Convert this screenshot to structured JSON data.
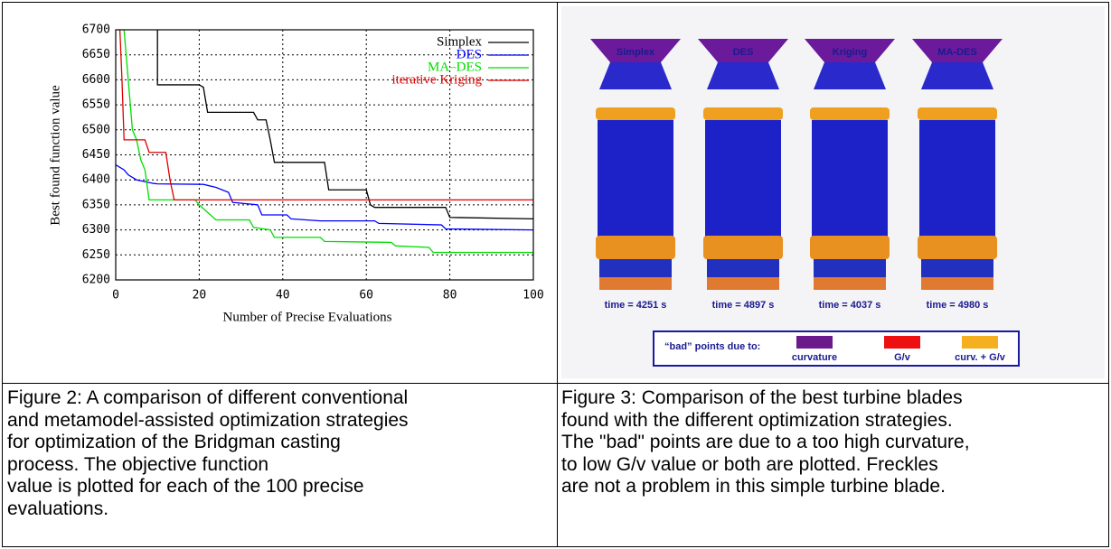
{
  "chart_data": {
    "type": "line",
    "x_label": "Number of Precise Evaluations",
    "y_label": "Best found function value",
    "xlim": [
      0,
      100
    ],
    "ylim": [
      6200,
      6700
    ],
    "xticks": [
      0,
      20,
      40,
      60,
      80,
      100
    ],
    "yticks": [
      6200,
      6250,
      6300,
      6350,
      6400,
      6450,
      6500,
      6550,
      6600,
      6650,
      6700
    ],
    "grid": true,
    "legend": "upper right",
    "series": [
      {
        "name": "Simplex",
        "color": "#000000",
        "x": [
          10,
          10,
          20,
          21,
          22,
          33,
          34,
          36,
          37,
          38,
          50,
          51,
          60,
          61,
          62,
          79,
          80,
          100
        ],
        "values": [
          6700,
          6590,
          6590,
          6585,
          6535,
          6535,
          6520,
          6520,
          6480,
          6435,
          6435,
          6380,
          6380,
          6350,
          6345,
          6345,
          6325,
          6322
        ]
      },
      {
        "name": "DES",
        "color": "#0000ff",
        "x": [
          0,
          2,
          3,
          5,
          9,
          10,
          21,
          24,
          27,
          28,
          34,
          35,
          41,
          42,
          49,
          62,
          63,
          78,
          79,
          100
        ],
        "values": [
          6430,
          6420,
          6410,
          6400,
          6393,
          6392,
          6391,
          6385,
          6375,
          6355,
          6350,
          6330,
          6330,
          6322,
          6318,
          6318,
          6313,
          6310,
          6302,
          6300
        ]
      },
      {
        "name": "MA–DES",
        "color": "#00dd00",
        "x": [
          2,
          3,
          4,
          5,
          6,
          7,
          8,
          19,
          20,
          22,
          24,
          32,
          33,
          37,
          38,
          49,
          50,
          66,
          67,
          75,
          76,
          100
        ],
        "values": [
          6700,
          6600,
          6500,
          6480,
          6440,
          6420,
          6360,
          6360,
          6350,
          6335,
          6320,
          6320,
          6305,
          6300,
          6285,
          6285,
          6277,
          6275,
          6268,
          6265,
          6255,
          6255
        ]
      },
      {
        "name": "iterative Kriging",
        "color": "#dd0000",
        "x": [
          1,
          1.5,
          2,
          7,
          8,
          12,
          13,
          14,
          100
        ],
        "values": [
          6700,
          6600,
          6480,
          6480,
          6455,
          6455,
          6400,
          6360,
          6360
        ]
      }
    ]
  },
  "figure3": {
    "titles": [
      "Simplex",
      "DES",
      "Kriging",
      "MA-DES"
    ],
    "times": [
      "time = 4251 s",
      "time = 4897 s",
      "time = 4037 s",
      "time = 4980 s"
    ],
    "legend": {
      "label": "“bad” points due to:",
      "items": [
        "curvature",
        "G/v",
        "curv. + G/v"
      ]
    }
  },
  "captions": {
    "figure2": [
      "Figure 2: A comparison of different conventional",
      "and metamodel-assisted optimization strategies",
      "for optimization of the Bridgman casting",
      "process. The objective function",
      "value is plotted for each of the 100 precise",
      "evaluations."
    ],
    "figure3": [
      "Figure 3: Comparison of the best turbine blades",
      "found with the different optimization strategies.",
      "The \"bad\" points are due to a too high curvature,",
      "to low G/v value or both are plotted. Freckles",
      "are not a problem in this simple turbine blade."
    ]
  }
}
